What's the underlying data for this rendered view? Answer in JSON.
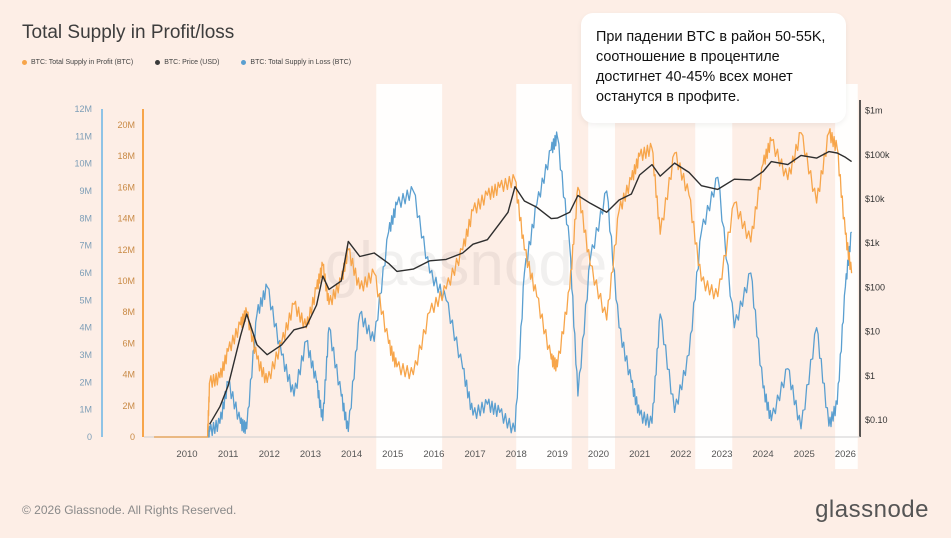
{
  "chart_data": {
    "type": "line",
    "title": "Total Supply in Profit/loss",
    "legend": [
      {
        "name": "BTC: Total Supply in Profit (BTC)",
        "color": "#f7a54a"
      },
      {
        "name": "BTC: Price (USD)",
        "color": "#3a3a3a"
      },
      {
        "name": "BTC: Total Supply in Loss (BTC)",
        "color": "#5a9fd0"
      }
    ],
    "x": {
      "ticks": [
        "2010",
        "2011",
        "2012",
        "2013",
        "2014",
        "2015",
        "2016",
        "2017",
        "2018",
        "2019",
        "2020",
        "2021",
        "2022",
        "2023",
        "2024",
        "2025",
        "2026"
      ],
      "range": [
        2009.2,
        2026.3
      ]
    },
    "y_left_loss": {
      "ticks": [
        "0",
        "1M",
        "2M",
        "3M",
        "4M",
        "5M",
        "6M",
        "7M",
        "8M",
        "9M",
        "10M",
        "11M",
        "12M"
      ],
      "range": [
        0,
        12000000
      ]
    },
    "y_left_profit": {
      "ticks": [
        "0",
        "2M",
        "4M",
        "6M",
        "8M",
        "10M",
        "12M",
        "14M",
        "16M",
        "18M",
        "20M"
      ],
      "range": [
        0,
        20000000
      ]
    },
    "y_right_price": {
      "ticks": [
        "$0.10",
        "$1",
        "$10",
        "$100",
        "$1k",
        "$10k",
        "$100k",
        "$1m"
      ],
      "scale": "log"
    },
    "bear_market_bands": [
      [
        2014.6,
        2016.2
      ],
      [
        2018.0,
        2019.35
      ],
      [
        2019.75,
        2020.4
      ],
      [
        2022.35,
        2023.25
      ],
      [
        2025.75,
        2026.3
      ]
    ],
    "price_series": {
      "name": "BTC: Price (USD)",
      "points": [
        [
          2010.55,
          0.08
        ],
        [
          2010.8,
          0.2
        ],
        [
          2011.0,
          0.6
        ],
        [
          2011.3,
          8
        ],
        [
          2011.45,
          25
        ],
        [
          2011.7,
          5
        ],
        [
          2011.95,
          3
        ],
        [
          2012.3,
          5
        ],
        [
          2012.6,
          11
        ],
        [
          2012.9,
          13
        ],
        [
          2013.15,
          40
        ],
        [
          2013.3,
          180
        ],
        [
          2013.45,
          90
        ],
        [
          2013.75,
          140
        ],
        [
          2013.92,
          1100
        ],
        [
          2014.2,
          500
        ],
        [
          2014.55,
          600
        ],
        [
          2014.9,
          350
        ],
        [
          2015.1,
          230
        ],
        [
          2015.5,
          260
        ],
        [
          2015.9,
          400
        ],
        [
          2016.3,
          430
        ],
        [
          2016.7,
          600
        ],
        [
          2016.95,
          950
        ],
        [
          2017.3,
          1200
        ],
        [
          2017.6,
          2800
        ],
        [
          2017.8,
          5000
        ],
        [
          2017.97,
          19000
        ],
        [
          2018.2,
          9000
        ],
        [
          2018.5,
          6500
        ],
        [
          2018.85,
          3600
        ],
        [
          2019.0,
          3700
        ],
        [
          2019.3,
          5000
        ],
        [
          2019.5,
          12000
        ],
        [
          2019.8,
          8000
        ],
        [
          2020.2,
          5000
        ],
        [
          2020.5,
          9500
        ],
        [
          2020.8,
          13000
        ],
        [
          2021.0,
          35000
        ],
        [
          2021.3,
          60000
        ],
        [
          2021.5,
          33000
        ],
        [
          2021.85,
          65000
        ],
        [
          2022.2,
          40000
        ],
        [
          2022.5,
          20000
        ],
        [
          2022.9,
          16500
        ],
        [
          2023.3,
          28000
        ],
        [
          2023.7,
          27000
        ],
        [
          2024.0,
          42000
        ],
        [
          2024.2,
          70000
        ],
        [
          2024.6,
          60000
        ],
        [
          2024.92,
          97000
        ],
        [
          2025.3,
          84000
        ],
        [
          2025.6,
          118000
        ],
        [
          2025.8,
          110000
        ],
        [
          2026.0,
          88000
        ],
        [
          2026.15,
          70000
        ]
      ]
    },
    "profit_series": {
      "name": "BTC: Total Supply in Profit (BTC)",
      "points": [
        [
          2009.2,
          0
        ],
        [
          2010.5,
          0
        ],
        [
          2010.55,
          3500000
        ],
        [
          2010.8,
          3800000
        ],
        [
          2011.0,
          5500000
        ],
        [
          2011.3,
          7200000
        ],
        [
          2011.45,
          8000000
        ],
        [
          2011.7,
          5000000
        ],
        [
          2011.95,
          3500000
        ],
        [
          2012.3,
          6000000
        ],
        [
          2012.6,
          8500000
        ],
        [
          2012.9,
          7000000
        ],
        [
          2013.15,
          9500000
        ],
        [
          2013.3,
          11000000
        ],
        [
          2013.45,
          8500000
        ],
        [
          2013.75,
          10000000
        ],
        [
          2013.92,
          12000000
        ],
        [
          2014.2,
          9500000
        ],
        [
          2014.55,
          10500000
        ],
        [
          2014.9,
          6000000
        ],
        [
          2015.1,
          4500000
        ],
        [
          2015.5,
          4000000
        ],
        [
          2015.9,
          8000000
        ],
        [
          2016.3,
          9500000
        ],
        [
          2016.7,
          12000000
        ],
        [
          2016.95,
          14500000
        ],
        [
          2017.3,
          15500000
        ],
        [
          2017.6,
          16000000
        ],
        [
          2017.97,
          16500000
        ],
        [
          2018.2,
          12000000
        ],
        [
          2018.5,
          9000000
        ],
        [
          2018.85,
          5000000
        ],
        [
          2019.0,
          4500000
        ],
        [
          2019.3,
          9500000
        ],
        [
          2019.5,
          16000000
        ],
        [
          2019.8,
          11000000
        ],
        [
          2020.2,
          7500000
        ],
        [
          2020.5,
          14500000
        ],
        [
          2020.8,
          16500000
        ],
        [
          2021.0,
          18000000
        ],
        [
          2021.3,
          18500000
        ],
        [
          2021.5,
          13000000
        ],
        [
          2021.85,
          18200000
        ],
        [
          2022.2,
          15500000
        ],
        [
          2022.5,
          10000000
        ],
        [
          2022.9,
          9000000
        ],
        [
          2023.3,
          15000000
        ],
        [
          2023.7,
          12500000
        ],
        [
          2024.0,
          17500000
        ],
        [
          2024.2,
          19000000
        ],
        [
          2024.6,
          16500000
        ],
        [
          2024.92,
          19500000
        ],
        [
          2025.3,
          15000000
        ],
        [
          2025.6,
          19500000
        ],
        [
          2025.8,
          18500000
        ],
        [
          2026.0,
          13000000
        ],
        [
          2026.15,
          10500000
        ]
      ]
    },
    "loss_series": {
      "name": "BTC: Total Supply in Loss (BTC)",
      "points": [
        [
          2009.2,
          0
        ],
        [
          2010.5,
          0
        ],
        [
          2010.55,
          200000
        ],
        [
          2010.8,
          500000
        ],
        [
          2011.0,
          2000000
        ],
        [
          2011.3,
          500000
        ],
        [
          2011.45,
          300000
        ],
        [
          2011.7,
          4500000
        ],
        [
          2011.95,
          5500000
        ],
        [
          2012.3,
          3000000
        ],
        [
          2012.6,
          1500000
        ],
        [
          2012.9,
          3500000
        ],
        [
          2013.15,
          2000000
        ],
        [
          2013.3,
          600000
        ],
        [
          2013.45,
          4000000
        ],
        [
          2013.75,
          1500000
        ],
        [
          2013.92,
          200000
        ],
        [
          2014.2,
          4500000
        ],
        [
          2014.55,
          3500000
        ],
        [
          2014.9,
          7500000
        ],
        [
          2015.1,
          8500000
        ],
        [
          2015.5,
          9000000
        ],
        [
          2015.9,
          6000000
        ],
        [
          2016.3,
          5000000
        ],
        [
          2016.7,
          2500000
        ],
        [
          2016.95,
          800000
        ],
        [
          2017.3,
          1200000
        ],
        [
          2017.6,
          900000
        ],
        [
          2017.97,
          200000
        ],
        [
          2018.2,
          6000000
        ],
        [
          2018.5,
          8500000
        ],
        [
          2018.85,
          10500000
        ],
        [
          2019.0,
          11000000
        ],
        [
          2019.3,
          7000000
        ],
        [
          2019.5,
          1500000
        ],
        [
          2019.8,
          6500000
        ],
        [
          2020.2,
          9000000
        ],
        [
          2020.5,
          4000000
        ],
        [
          2020.8,
          2000000
        ],
        [
          2021.0,
          800000
        ],
        [
          2021.3,
          500000
        ],
        [
          2021.5,
          4500000
        ],
        [
          2021.85,
          900000
        ],
        [
          2022.2,
          3000000
        ],
        [
          2022.5,
          7500000
        ],
        [
          2022.9,
          9500000
        ],
        [
          2023.3,
          4000000
        ],
        [
          2023.7,
          6000000
        ],
        [
          2024.0,
          1800000
        ],
        [
          2024.2,
          600000
        ],
        [
          2024.6,
          2500000
        ],
        [
          2024.92,
          300000
        ],
        [
          2025.3,
          4000000
        ],
        [
          2025.6,
          400000
        ],
        [
          2025.8,
          1200000
        ],
        [
          2026.0,
          5500000
        ],
        [
          2026.15,
          7500000
        ]
      ]
    }
  },
  "callout": {
    "text": "При падении BTC в район 50-55K, соотношение в процентиле достигнет 40-45% всех монет останутся в профите."
  },
  "watermark": "glassnode",
  "footer": {
    "copyright": "© 2026 Glassnode. All Rights Reserved.",
    "brand": "glassnode"
  }
}
